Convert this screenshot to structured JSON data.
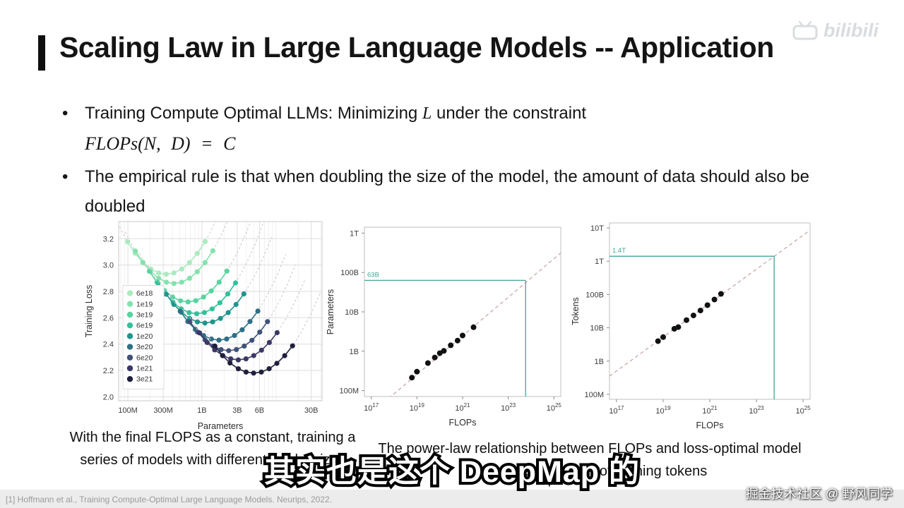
{
  "title": {
    "text": "Scaling Law in Large Language Models -- Application"
  },
  "bullets": {
    "marker": "•",
    "b1": {
      "pre": "Training Compute Optimal LLMs: Minimizing ",
      "var": "L",
      "post": " under the constraint",
      "math": "FLOPs(N, D) = C"
    },
    "b2": {
      "text": "The empirical rule is that when doubling the size of the model, the amount of data should also be doubled"
    }
  },
  "captions": {
    "left": "With the final FLOPS as a constant, training a series of models with different model sizes",
    "right": "The power-law relationship between FLOPs and loss-optimal model parameters/number of training tokens"
  },
  "subtitle": {
    "text": "其实也是这个 DeepMap 的"
  },
  "watermarks": {
    "top": "bilibili",
    "bottom": "掘金技术社区 @ 野风同学"
  },
  "footnote": {
    "text": "[1] Hoffmann et al., Training Compute-Optimal Large Language Models. Neurips, 2022."
  },
  "chart_data": [
    {
      "type": "line",
      "name": "isoflop-curves",
      "xlabel": "Parameters",
      "ylabel": "Training Loss",
      "x_scale": "log",
      "xlim_b": [
        0.075,
        42
      ],
      "ylim": [
        1.97,
        3.33
      ],
      "y_ticks": [
        2.0,
        2.2,
        2.4,
        2.6,
        2.8,
        3.0,
        3.2
      ],
      "x_ticks": [
        {
          "v": 0.1,
          "label": "100M"
        },
        {
          "v": 0.3,
          "label": "300M"
        },
        {
          "v": 1,
          "label": "1B"
        },
        {
          "v": 3,
          "label": "3B"
        },
        {
          "v": 6,
          "label": "6B"
        },
        {
          "v": 30,
          "label": "30B"
        }
      ],
      "x_minor_ticks": [
        0.08,
        0.09,
        0.2,
        0.4,
        0.5,
        0.6,
        0.7,
        0.8,
        0.9,
        2,
        4,
        5,
        7,
        8,
        9,
        10,
        20,
        40
      ],
      "curve_model": "loss = min_loss + k * (log10(N / optimal_params_b))^2",
      "point_multipliers": [
        0.3,
        0.38,
        0.48,
        0.62,
        0.79,
        1.0,
        1.27,
        1.62,
        2.06,
        2.63,
        3.35
      ],
      "extension_multipliers": [
        0.22,
        0.28,
        0.36,
        0.47,
        0.6,
        0.78,
        1.0,
        1.3,
        1.7,
        2.2,
        2.9,
        3.7,
        4.8,
        6.2,
        8.0
      ],
      "series": [
        {
          "label": "6e18",
          "color": "#aceac0",
          "optimal_params_b": 0.33,
          "min_loss": 2.93,
          "k": 0.9
        },
        {
          "label": "1e19",
          "color": "#83e2ad",
          "optimal_params_b": 0.42,
          "min_loss": 2.86,
          "k": 0.9
        },
        {
          "label": "3e19",
          "color": "#57d49f",
          "optimal_params_b": 0.65,
          "min_loss": 2.72,
          "k": 0.85
        },
        {
          "label": "6e19",
          "color": "#30c29a",
          "optimal_params_b": 0.85,
          "min_loss": 2.63,
          "k": 0.85
        },
        {
          "label": "1e20",
          "color": "#1f958d",
          "optimal_params_b": 1.1,
          "min_loss": 2.56,
          "k": 0.8
        },
        {
          "label": "3e20",
          "color": "#2e6f85",
          "optimal_params_b": 1.7,
          "min_loss": 2.43,
          "k": 0.8
        },
        {
          "label": "6e20",
          "color": "#40517a",
          "optimal_params_b": 2.3,
          "min_loss": 2.35,
          "k": 0.8
        },
        {
          "label": "1e21",
          "color": "#3b3867",
          "optimal_params_b": 3.1,
          "min_loss": 2.28,
          "k": 0.75
        },
        {
          "label": "3e21",
          "color": "#201f3d",
          "optimal_params_b": 5.0,
          "min_loss": 2.18,
          "k": 0.75
        }
      ]
    },
    {
      "type": "scatter",
      "name": "flops-vs-parameters",
      "xlabel": "FLOPs",
      "ylabel": "Parameters",
      "xlim_exp": [
        16.7,
        25.3
      ],
      "ylim_exp": [
        7.85,
        12.15
      ],
      "x_ticks_exp": [
        17,
        19,
        21,
        23,
        25
      ],
      "y_ticks": [
        {
          "exp": 8,
          "label": "100M"
        },
        {
          "exp": 9,
          "label": "1B"
        },
        {
          "exp": 10,
          "label": "10B"
        },
        {
          "exp": 11,
          "label": "100B"
        },
        {
          "exp": 12,
          "label": "1T"
        }
      ],
      "trend": {
        "slope": 0.49,
        "intercept": -0.9,
        "style": "dashed",
        "color": "#c59f9f"
      },
      "points_exp": [
        [
          18.78,
          8.33
        ],
        [
          19.0,
          8.48
        ],
        [
          19.48,
          8.7
        ],
        [
          19.78,
          8.84
        ],
        [
          20.0,
          8.95
        ],
        [
          20.18,
          9.01
        ],
        [
          20.48,
          9.15
        ],
        [
          20.78,
          9.27
        ],
        [
          21.0,
          9.4
        ],
        [
          21.48,
          9.61
        ]
      ],
      "highlight": {
        "x_exp": 23.76,
        "y_exp": 10.8,
        "label": "63B",
        "color": "#3fa796"
      }
    },
    {
      "type": "scatter",
      "name": "flops-vs-tokens",
      "xlabel": "FLOPs",
      "ylabel": "Tokens",
      "xlim_exp": [
        16.7,
        25.3
      ],
      "ylim_exp": [
        7.85,
        13.15
      ],
      "x_ticks_exp": [
        17,
        19,
        21,
        23,
        25
      ],
      "y_ticks": [
        {
          "exp": 8,
          "label": "100M"
        },
        {
          "exp": 9,
          "label": "1B"
        },
        {
          "exp": 10,
          "label": "10B"
        },
        {
          "exp": 11,
          "label": "100B"
        },
        {
          "exp": 12,
          "label": "1T"
        },
        {
          "exp": 13,
          "label": "10T"
        }
      ],
      "trend": {
        "slope": 0.51,
        "intercept": 0.03,
        "style": "dashed",
        "color": "#c59f9f"
      },
      "points_exp": [
        [
          18.78,
          9.6
        ],
        [
          19.0,
          9.72
        ],
        [
          19.48,
          9.97
        ],
        [
          19.65,
          10.02
        ],
        [
          20.0,
          10.23
        ],
        [
          20.3,
          10.37
        ],
        [
          20.6,
          10.52
        ],
        [
          20.9,
          10.68
        ],
        [
          21.2,
          10.85
        ],
        [
          21.48,
          11.02
        ]
      ],
      "highlight": {
        "x_exp": 23.76,
        "y_exp": 12.15,
        "label": "1.4T",
        "color": "#3fa796"
      }
    }
  ]
}
